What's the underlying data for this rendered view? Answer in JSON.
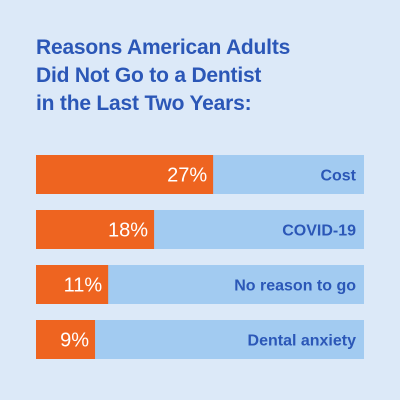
{
  "chart_data": {
    "type": "bar",
    "orientation": "horizontal",
    "title_lines": [
      "Reasons American Adults",
      "Did Not Go to a Dentist",
      "in the Last Two Years:"
    ],
    "categories": [
      "Cost",
      "COVID-19",
      "No reason to go",
      "Dental anxiety"
    ],
    "values": [
      27,
      18,
      11,
      9
    ],
    "value_labels": [
      "27%",
      "18%",
      "11%",
      "9%"
    ],
    "xlim": [
      0,
      50
    ],
    "grid": false,
    "legend": "none",
    "colors": {
      "background": "#dce9f8",
      "title": "#2b57b7",
      "bar_fill": "#ee6420",
      "bar_track": "#a2cbf1",
      "value_text": "#ffffff",
      "category_text": "#2b57b7"
    }
  }
}
